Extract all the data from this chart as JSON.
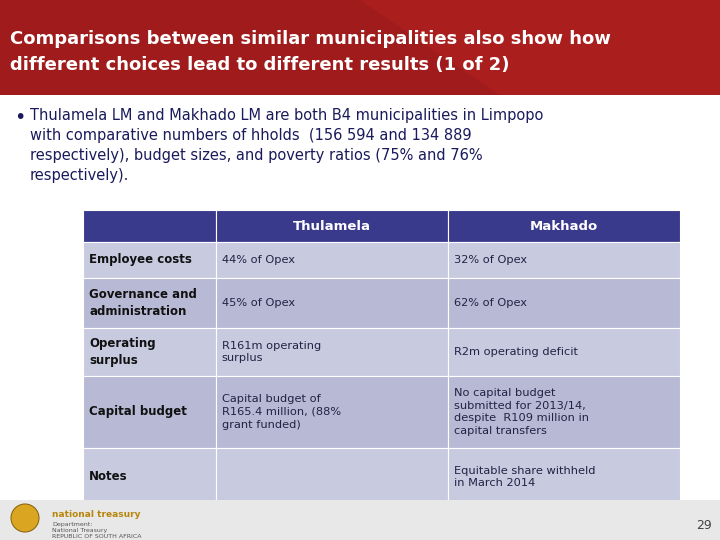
{
  "title_line1": "Comparisons between similar municipalities also show how",
  "title_line2": "different choices lead to different results (1 of 2)",
  "title_bg_color": "#A01C1C",
  "title_text_color": "#FFFFFF",
  "bullet_text_line1": "Thulamela LM and Makhado LM are both B4 municipalities in Limpopo",
  "bullet_text_line2": "with comparative numbers of hholds  (156 594 and 134 889",
  "bullet_text_line3": "respectively), budget sizes, and poverty ratios (75% and 76%",
  "bullet_text_line4": "respectively).",
  "bullet_text_color": "#1A1A5C",
  "body_bg_color": "#FFFFFF",
  "table_header_bg": "#3A3A8C",
  "table_header_text": "#FFFFFF",
  "table_col0_bg": "#3A3A8C",
  "table_row_bg_odd": "#C8CAE0",
  "table_row_bg_even": "#B8BAD5",
  "table_text_color": "#222244",
  "table_bold_color": "#111111",
  "col_headers": [
    "",
    "Thulamela",
    "Makhado"
  ],
  "rows": [
    [
      "Employee costs",
      "44% of Opex",
      "32% of Opex"
    ],
    [
      "Governance and\nadministration",
      "45% of Opex",
      "62% of Opex"
    ],
    [
      "Operating\nsurplus",
      "R161m operating\nsurplus",
      "R2m operating deficit"
    ],
    [
      "Capital budget",
      "Capital budget of\nR165.4 million, (88%\ngrant funded)",
      "No capital budget\nsubmitted for 2013/14,\ndespite  R109 million in\ncapital transfers"
    ],
    [
      "Notes",
      "",
      "Equitable share withheld\nin March 2014"
    ]
  ],
  "footer_page": "29",
  "footer_bg": "#E8E8E8",
  "logo_gold": "#B8860B",
  "logo_gray": "#555555"
}
